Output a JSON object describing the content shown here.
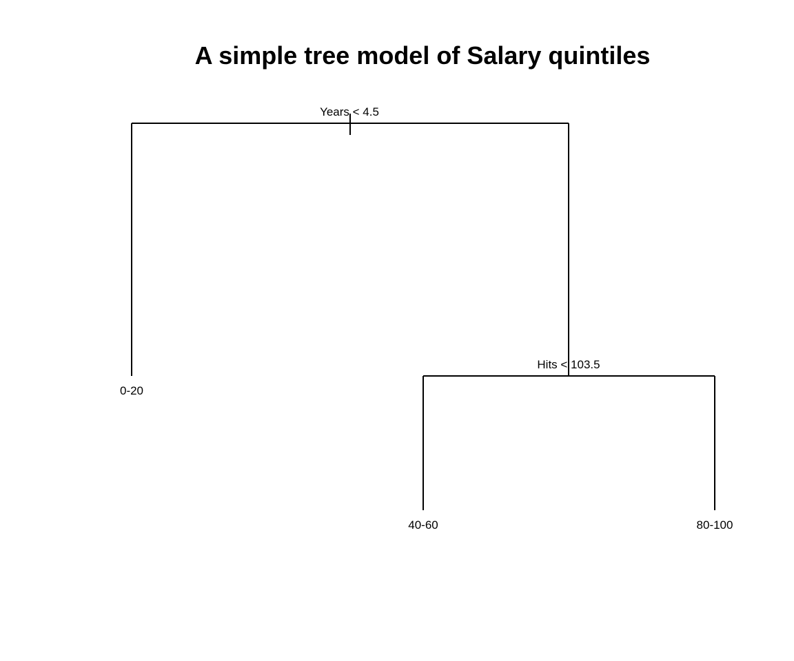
{
  "title": "A simple tree model of Salary quintiles",
  "tree": {
    "root_split": "Years < 4.5",
    "right_split": "Hits < 103.5",
    "leaves": {
      "left": "0-20",
      "right_left": "40-60",
      "right_right": "80-100"
    }
  },
  "colors": {
    "background": "#ffffff",
    "lines": "#000000"
  }
}
